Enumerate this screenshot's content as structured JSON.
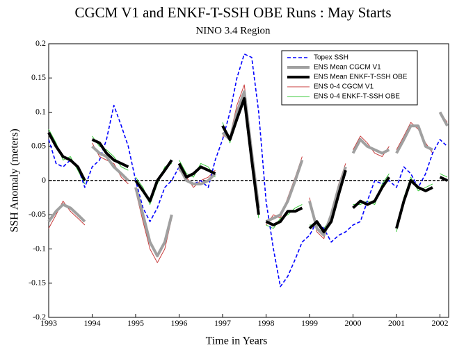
{
  "chart_data": {
    "type": "line",
    "title": "CGCM V1 and ENKF-T-SSH OBE Runs : May Starts",
    "subtitle": "NINO 3.4 Region",
    "x_label": "Time in Years",
    "y_label": "SSH Anomaly (meters)",
    "xlim": [
      1993,
      2002.2
    ],
    "xticks": [
      1993,
      1994,
      1995,
      1996,
      1997,
      1998,
      1999,
      2000,
      2001,
      2002
    ],
    "ylim": [
      -0.2,
      0.2
    ],
    "yticks": [
      -0.2,
      -0.15,
      -0.1,
      -0.05,
      0,
      0.05,
      0.1,
      0.15,
      0.2
    ],
    "hline": 0,
    "legend": "upper right",
    "x": [
      1993,
      1993.17,
      1993.33,
      1993.5,
      1993.67,
      1993.83,
      null,
      1994,
      1994.17,
      1994.33,
      1994.5,
      1994.67,
      1994.83,
      null,
      1995,
      1995.17,
      1995.33,
      1995.5,
      1995.67,
      1995.83,
      null,
      1996,
      1996.17,
      1996.33,
      1996.5,
      1996.67,
      1996.83,
      null,
      1997,
      1997.17,
      1997.33,
      1997.5,
      1997.67,
      1997.83,
      null,
      1998,
      1998.17,
      1998.33,
      1998.5,
      1998.67,
      1998.83,
      null,
      1999,
      1999.17,
      1999.33,
      1999.5,
      1999.67,
      1999.83,
      null,
      2000,
      2000.17,
      2000.33,
      2000.5,
      2000.67,
      2000.83,
      null,
      2001,
      2001.17,
      2001.33,
      2001.5,
      2001.67,
      2001.83,
      null,
      2002,
      2002.17
    ],
    "series": [
      {
        "name": "Topex SSH",
        "color": "#0000ff",
        "style": "dashed",
        "width": 1.6,
        "x": [
          1993,
          1993.17,
          1993.33,
          1993.5,
          1993.67,
          1993.83,
          1994,
          1994.17,
          1994.33,
          1994.5,
          1994.67,
          1994.83,
          1995,
          1995.17,
          1995.33,
          1995.5,
          1995.67,
          1995.83,
          1996,
          1996.17,
          1996.33,
          1996.5,
          1996.67,
          1996.83,
          1997,
          1997.17,
          1997.33,
          1997.5,
          1997.67,
          1997.83,
          1998,
          1998.17,
          1998.33,
          1998.5,
          1998.67,
          1998.83,
          1999,
          1999.17,
          1999.33,
          1999.5,
          1999.67,
          1999.83,
          2000,
          2000.17,
          2000.33,
          2000.5,
          2000.67,
          2000.83,
          2001,
          2001.17,
          2001.33,
          2001.5,
          2001.67,
          2001.83,
          2002,
          2002.17
        ],
        "values": [
          0.06,
          0.025,
          0.02,
          0.03,
          0.02,
          -0.01,
          0.02,
          0.03,
          0.06,
          0.11,
          0.08,
          0.05,
          0.0,
          -0.04,
          -0.06,
          -0.04,
          -0.01,
          0.0,
          0.02,
          0.0,
          -0.005,
          0.0,
          -0.01,
          0.03,
          0.06,
          0.1,
          0.15,
          0.185,
          0.18,
          0.1,
          -0.03,
          -0.1,
          -0.155,
          -0.14,
          -0.115,
          -0.09,
          -0.08,
          -0.06,
          -0.07,
          -0.09,
          -0.08,
          -0.075,
          -0.065,
          -0.06,
          -0.03,
          0.0,
          -0.005,
          0.0,
          -0.01,
          0.02,
          0.01,
          -0.01,
          0.01,
          0.04,
          0.06,
          0.05
        ]
      },
      {
        "name": "ENS Mean CGCM V1",
        "color": "#a0a0a0",
        "width": 4,
        "values": [
          -0.06,
          -0.045,
          -0.035,
          -0.04,
          -0.05,
          -0.06,
          null,
          0.05,
          0.04,
          0.035,
          0.02,
          0.01,
          0.0,
          null,
          -0.01,
          -0.05,
          -0.09,
          -0.11,
          -0.09,
          -0.05,
          null,
          0.02,
          0.0,
          -0.005,
          -0.005,
          0.0,
          0.01,
          null,
          0.07,
          0.06,
          0.1,
          0.13,
          0.04,
          -0.04,
          null,
          -0.06,
          -0.055,
          -0.05,
          -0.03,
          0.0,
          0.03,
          null,
          -0.03,
          -0.07,
          -0.08,
          -0.05,
          -0.01,
          0.02,
          null,
          0.04,
          0.06,
          0.05,
          0.045,
          0.04,
          0.045,
          null,
          0.04,
          0.06,
          0.08,
          0.08,
          0.05,
          0.045,
          null,
          0.1,
          0.08
        ]
      },
      {
        "name": "ENS Mean ENKF-T-SSH OBE",
        "color": "#000000",
        "width": 4,
        "values": [
          0.07,
          0.05,
          0.035,
          0.03,
          0.02,
          0.0,
          null,
          0.06,
          0.055,
          0.04,
          0.03,
          0.025,
          0.02,
          null,
          0.0,
          -0.015,
          -0.03,
          0.0,
          0.015,
          0.03,
          null,
          0.025,
          0.005,
          0.01,
          0.02,
          0.015,
          0.01,
          null,
          0.08,
          0.06,
          0.09,
          0.12,
          0.03,
          -0.05,
          null,
          -0.06,
          -0.065,
          -0.06,
          -0.045,
          -0.045,
          -0.04,
          null,
          -0.07,
          -0.06,
          -0.075,
          -0.06,
          -0.02,
          0.015,
          null,
          -0.04,
          -0.03,
          -0.035,
          -0.03,
          -0.01,
          0.005,
          null,
          -0.07,
          -0.03,
          0.0,
          -0.01,
          -0.015,
          -0.01,
          null,
          0.005,
          0.0
        ]
      },
      {
        "name": "ENS 0-4 CGCM V1",
        "color": "#c83c3c",
        "width": 1,
        "values": [
          -0.07,
          -0.05,
          -0.03,
          -0.045,
          -0.055,
          -0.065,
          null,
          0.055,
          0.035,
          0.03,
          0.025,
          0.005,
          -0.005,
          null,
          -0.015,
          -0.06,
          -0.1,
          -0.12,
          -0.1,
          -0.055,
          null,
          0.015,
          0.005,
          -0.01,
          0.0,
          0.005,
          0.015,
          null,
          0.065,
          0.065,
          0.11,
          0.14,
          0.05,
          -0.035,
          null,
          -0.065,
          -0.05,
          -0.055,
          -0.025,
          0.005,
          0.035,
          null,
          -0.025,
          -0.075,
          -0.085,
          -0.045,
          -0.005,
          0.025,
          null,
          0.045,
          0.065,
          0.055,
          0.04,
          0.035,
          0.05,
          null,
          0.045,
          0.065,
          0.085,
          0.075,
          0.055,
          0.04,
          null,
          0.1,
          0.085
        ]
      },
      {
        "name": "ENS 0-4 ENKF-T-SSH OBE",
        "color": "#3cc83c",
        "width": 1,
        "values": [
          0.075,
          0.055,
          0.03,
          0.035,
          0.015,
          -0.005,
          null,
          0.065,
          0.05,
          0.045,
          0.035,
          0.02,
          0.015,
          null,
          0.005,
          -0.01,
          -0.035,
          -0.005,
          0.02,
          0.025,
          null,
          0.03,
          0.01,
          0.005,
          0.025,
          0.02,
          0.005,
          null,
          0.085,
          0.055,
          0.095,
          0.115,
          0.035,
          -0.055,
          null,
          -0.065,
          -0.07,
          -0.055,
          -0.05,
          -0.04,
          -0.035,
          null,
          -0.065,
          -0.065,
          -0.07,
          -0.055,
          -0.025,
          0.02,
          null,
          -0.035,
          -0.035,
          -0.03,
          -0.035,
          -0.005,
          0.01,
          null,
          -0.075,
          -0.025,
          0.005,
          -0.015,
          -0.01,
          -0.005,
          null,
          0.01,
          0.005
        ]
      }
    ]
  }
}
